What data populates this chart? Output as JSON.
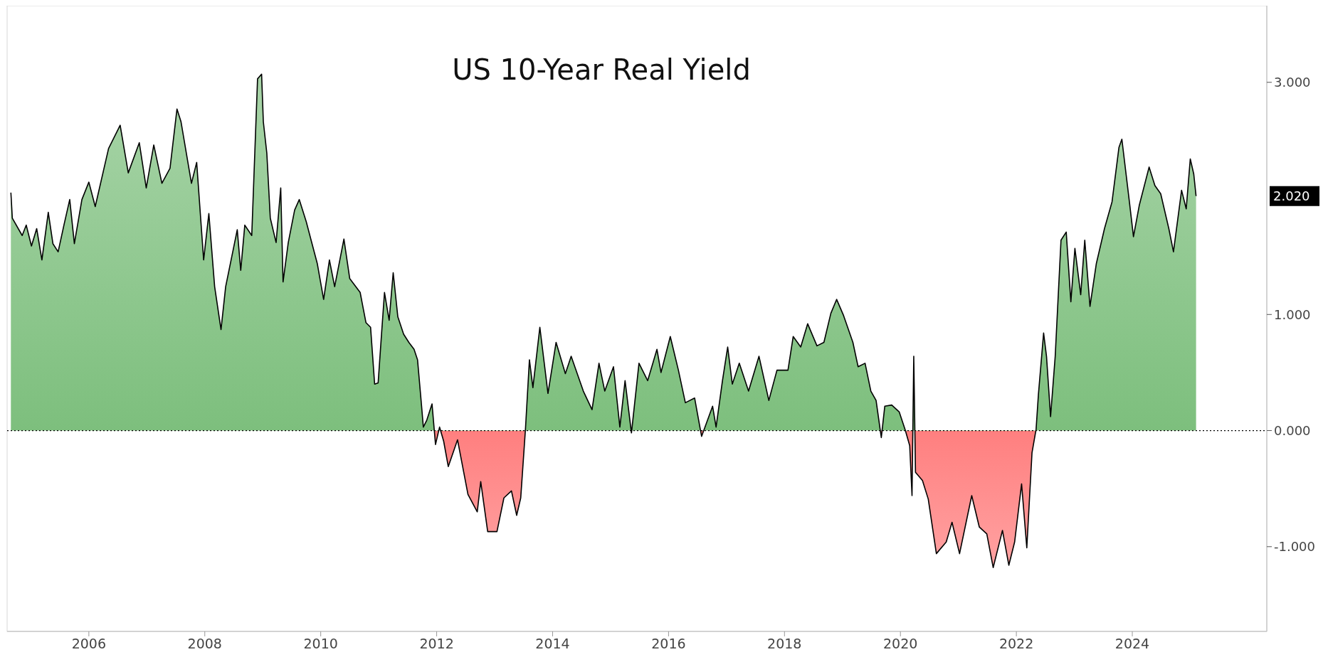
{
  "chart_data": {
    "type": "area",
    "title": "US 10-Year Real Yield",
    "x": [
      2004.655,
      2004.68,
      2004.85,
      2004.92,
      2005.01,
      2005.1,
      2005.19,
      2005.3,
      2005.38,
      2005.47,
      2005.57,
      2005.67,
      2005.75,
      2005.88,
      2006.0,
      2006.11,
      2006.34,
      2006.54,
      2006.68,
      2006.87,
      2006.99,
      2007.12,
      2007.26,
      2007.4,
      2007.52,
      2007.59,
      2007.77,
      2007.86,
      2007.98,
      2008.07,
      2008.17,
      2008.28,
      2008.36,
      2008.56,
      2008.62,
      2008.69,
      2008.81,
      2008.91,
      2008.98,
      2009.01,
      2009.07,
      2009.13,
      2009.23,
      2009.31,
      2009.35,
      2009.44,
      2009.55,
      2009.63,
      2009.75,
      2009.85,
      2009.94,
      2010.05,
      2010.15,
      2010.24,
      2010.4,
      2010.5,
      2010.68,
      2010.78,
      2010.86,
      2010.93,
      2010.99,
      2011.05,
      2011.1,
      2011.18,
      2011.25,
      2011.33,
      2011.43,
      2011.52,
      2011.61,
      2011.67,
      2011.74,
      2011.77,
      2011.83,
      2011.92,
      2011.98,
      2012.05,
      2012.12,
      2012.2,
      2012.36,
      2012.54,
      2012.7,
      2012.76,
      2012.88,
      2013.04,
      2013.16,
      2013.29,
      2013.38,
      2013.45,
      2013.53,
      2013.6,
      2013.66,
      2013.78,
      2013.92,
      2014.06,
      2014.22,
      2014.32,
      2014.53,
      2014.68,
      2014.8,
      2014.9,
      2015.05,
      2015.16,
      2015.25,
      2015.36,
      2015.49,
      2015.64,
      2015.8,
      2015.87,
      2016.03,
      2016.17,
      2016.29,
      2016.45,
      2016.57,
      2016.76,
      2016.82,
      2016.93,
      2017.02,
      2017.1,
      2017.22,
      2017.38,
      2017.56,
      2017.73,
      2017.87,
      2018.06,
      2018.15,
      2018.28,
      2018.4,
      2018.56,
      2018.68,
      2018.8,
      2018.9,
      2019.02,
      2019.18,
      2019.27,
      2019.39,
      2019.49,
      2019.58,
      2019.67,
      2019.73,
      2019.85,
      2019.98,
      2020.08,
      2020.16,
      2020.2,
      2020.23,
      2020.26,
      2020.38,
      2020.48,
      2020.62,
      2020.79,
      2020.89,
      2021.02,
      2021.23,
      2021.36,
      2021.49,
      2021.6,
      2021.76,
      2021.87,
      2021.97,
      2022.09,
      2022.18,
      2022.27,
      2022.34,
      2022.38,
      2022.47,
      2022.52,
      2022.59,
      2022.67,
      2022.77,
      2022.86,
      2022.94,
      2023.01,
      2023.11,
      2023.18,
      2023.27,
      2023.38,
      2023.52,
      2023.65,
      2023.77,
      2023.82,
      2023.95,
      2024.02,
      2024.12,
      2024.29,
      2024.39,
      2024.49,
      2024.63,
      2024.71,
      2024.85,
      2024.93,
      2025.0,
      2025.06,
      2025.1
    ],
    "series": [
      {
        "color": "#000000",
        "values": [
          2.05,
          1.83,
          1.68,
          1.77,
          1.59,
          1.74,
          1.47,
          1.88,
          1.61,
          1.54,
          1.77,
          1.99,
          1.61,
          1.99,
          2.14,
          1.93,
          2.43,
          2.63,
          2.22,
          2.48,
          2.09,
          2.46,
          2.13,
          2.26,
          2.77,
          2.66,
          2.13,
          2.31,
          1.47,
          1.87,
          1.24,
          0.87,
          1.24,
          1.73,
          1.38,
          1.77,
          1.68,
          3.03,
          3.07,
          2.66,
          2.39,
          1.83,
          1.62,
          2.09,
          1.28,
          1.62,
          1.9,
          1.99,
          1.8,
          1.61,
          1.44,
          1.13,
          1.47,
          1.24,
          1.65,
          1.31,
          1.19,
          0.93,
          0.89,
          0.4,
          0.41,
          0.84,
          1.19,
          0.95,
          1.36,
          0.98,
          0.83,
          0.76,
          0.7,
          0.61,
          0.21,
          0.03,
          0.09,
          0.23,
          -0.12,
          0.03,
          -0.09,
          -0.31,
          -0.08,
          -0.55,
          -0.7,
          -0.44,
          -0.87,
          -0.87,
          -0.58,
          -0.52,
          -0.73,
          -0.58,
          0.0,
          0.61,
          0.37,
          0.89,
          0.32,
          0.76,
          0.49,
          0.64,
          0.34,
          0.18,
          0.58,
          0.34,
          0.55,
          0.03,
          0.43,
          -0.02,
          0.58,
          0.43,
          0.7,
          0.5,
          0.81,
          0.52,
          0.24,
          0.28,
          -0.05,
          0.21,
          0.03,
          0.43,
          0.72,
          0.4,
          0.58,
          0.34,
          0.64,
          0.26,
          0.52,
          0.52,
          0.81,
          0.72,
          0.92,
          0.73,
          0.76,
          1.01,
          1.13,
          0.99,
          0.76,
          0.55,
          0.58,
          0.34,
          0.26,
          -0.06,
          0.21,
          0.22,
          0.16,
          0.01,
          -0.13,
          -0.56,
          0.64,
          -0.36,
          -0.43,
          -0.59,
          -1.06,
          -0.96,
          -0.79,
          -1.06,
          -0.56,
          -0.83,
          -0.89,
          -1.18,
          -0.86,
          -1.16,
          -0.96,
          -0.46,
          -1.01,
          -0.19,
          0.01,
          0.31,
          0.84,
          0.64,
          0.12,
          0.64,
          1.64,
          1.71,
          1.11,
          1.57,
          1.17,
          1.64,
          1.07,
          1.44,
          1.74,
          1.97,
          2.44,
          2.51,
          1.97,
          1.67,
          1.94,
          2.27,
          2.11,
          2.04,
          1.74,
          1.54,
          2.07,
          1.91,
          2.34,
          2.21,
          2.02
        ]
      }
    ],
    "colors": [
      "#7dbf7d",
      "#ff7f7f"
    ],
    "xlim": [
      2004.59,
      2026.32
    ],
    "xticks": [
      2006,
      2008,
      2010,
      2012,
      2014,
      2016,
      2018,
      2020,
      2022,
      2024
    ],
    "ylim": [
      -1.73,
      3.66
    ],
    "yticks": [
      {
        "value": -1,
        "label": "-1.000"
      },
      {
        "value": 0,
        "label": "0.000"
      },
      {
        "value": 1,
        "label": "1.000"
      },
      {
        "value": 3,
        "label": "3.000"
      }
    ],
    "ref_lines": [
      {
        "axis": "y",
        "value": 0,
        "line_style": "dotted",
        "color": "#000000"
      }
    ],
    "annotations": [
      "2.020"
    ]
  }
}
